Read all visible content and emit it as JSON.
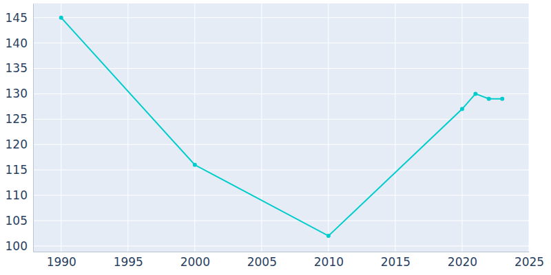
{
  "chart_data": {
    "type": "line",
    "x": [
      1990,
      2000,
      2010,
      2020,
      2021,
      2022,
      2023
    ],
    "values": [
      145,
      116,
      102,
      127,
      130,
      129,
      129
    ],
    "color": "#00cccc",
    "marker": "circle",
    "xlim": [
      1987.9,
      2025
    ],
    "ylim": [
      98.9,
      147.8
    ],
    "xticks": [
      1990,
      1995,
      2000,
      2005,
      2010,
      2015,
      2020,
      2025
    ],
    "yticks": [
      100,
      105,
      110,
      115,
      120,
      125,
      130,
      135,
      140,
      145
    ],
    "grid": true
  }
}
